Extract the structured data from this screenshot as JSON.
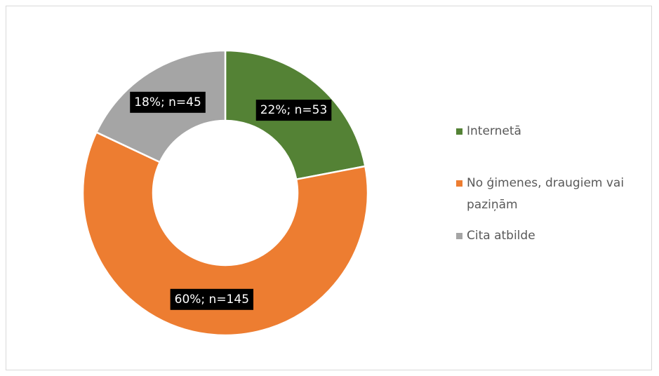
{
  "chart_data": {
    "type": "donut",
    "categories": [
      "Internetā",
      "No ģimenes, draugiem vai paziņām",
      "Cita atbilde"
    ],
    "values": [
      22,
      60,
      18
    ],
    "value_labels": [
      "22%; n=53",
      "60%; n=145",
      "18%; n=45"
    ],
    "colors": [
      "#548235",
      "#ed7d31",
      "#a5a5a5"
    ],
    "legend": "right"
  }
}
